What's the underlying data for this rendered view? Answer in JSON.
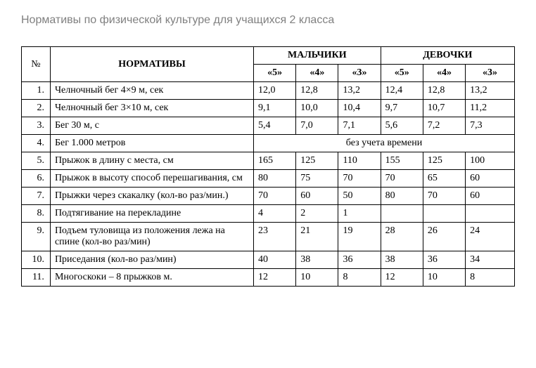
{
  "title": "Нормативы по физической культуре для учащихся 2 класса",
  "headers": {
    "num": "№",
    "name": "НОРМАТИВЫ",
    "boys": "МАЛЬЧИКИ",
    "girls": "ДЕВОЧКИ",
    "g5": "«5»",
    "g4": "«4»",
    "g3": "«3»"
  },
  "rows": [
    {
      "n": "1.",
      "name": "Челночный бег 4×9 м, сек",
      "b5": "12,0",
      "b4": "12,8",
      "b3": "13,2",
      "g5": "12,4",
      "g4": "12,8",
      "g3": "13,2"
    },
    {
      "n": "2.",
      "name": "Челночный бег 3×10 м, сек",
      "b5": "9,1",
      "b4": "10,0",
      "b3": "10,4",
      "g5": "9,7",
      "g4": "10,7",
      "g3": "11,2"
    },
    {
      "n": "3.",
      "name": "Бег 30 м, с",
      "b5": "5,4",
      "b4": "7,0",
      "b3": "7,1",
      "g5": "5,6",
      "g4": "7,2",
      "g3": "7,3"
    },
    {
      "n": "4.",
      "name": "Бег 1.000 метров",
      "span": "без учета времени"
    },
    {
      "n": "5.",
      "name": "Прыжок в длину с места, см",
      "b5": "165",
      "b4": "125",
      "b3": "110",
      "g5": "155",
      "g4": "125",
      "g3": "100"
    },
    {
      "n": "6.",
      "name": "Прыжок в высоту способ перешагивания, см",
      "b5": "80",
      "b4": "75",
      "b3": "70",
      "g5": "70",
      "g4": "65",
      "g3": "60"
    },
    {
      "n": "7.",
      "name": "Прыжки через скакалку (кол-во раз/мин.)",
      "b5": "70",
      "b4": "60",
      "b3": "50",
      "g5": "80",
      "g4": "70",
      "g3": "60"
    },
    {
      "n": "8.",
      "name": "Подтягивание на перекладине",
      "b5": "4",
      "b4": "2",
      "b3": "1",
      "g5": "",
      "g4": "",
      "g3": ""
    },
    {
      "n": "9.",
      "name": "Подъем туловища из положения лежа на спине (кол-во раз/мин)",
      "b5": "23",
      "b4": "21",
      "b3": "19",
      "g5": "28",
      "g4": "26",
      "g3": "24"
    },
    {
      "n": "10.",
      "name": "Приседания (кол-во раз/мин)",
      "b5": "40",
      "b4": "38",
      "b3": "36",
      "g5": "38",
      "g4": "36",
      "g3": "34"
    },
    {
      "n": "11.",
      "name": "Многоскоки – 8 прыжков м.",
      "b5": "12",
      "b4": "10",
      "b3": "8",
      "g5": "12",
      "g4": "10",
      "g3": "8"
    }
  ]
}
